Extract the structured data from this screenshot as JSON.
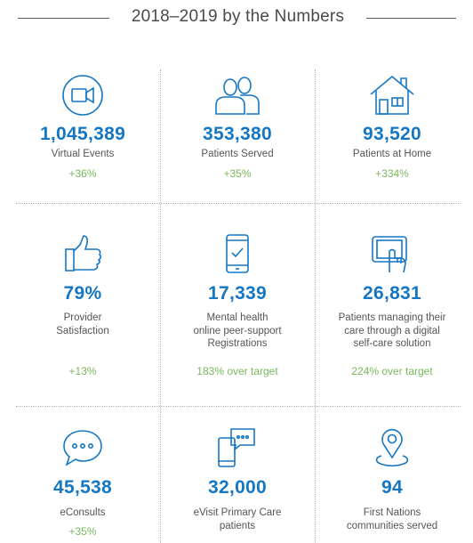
{
  "header": {
    "title": "2018–2019 by the Numbers"
  },
  "stats": [
    {
      "icon": "video-camera-icon",
      "number": "1,045,389",
      "label": "Virtual Events",
      "delta": "+36%"
    },
    {
      "icon": "people-icon",
      "number": "353,380",
      "label": "Patients Served",
      "delta": "+35%"
    },
    {
      "icon": "house-icon",
      "number": "93,520",
      "label": "Patients at Home",
      "delta": "+334%"
    },
    {
      "icon": "thumbs-up-icon",
      "number": "79%",
      "label": "Provider\nSatisfaction",
      "delta": "+13%"
    },
    {
      "icon": "smartphone-check-icon",
      "number": "17,339",
      "label": "Mental health\nonline peer-support\nRegistrations",
      "delta": "183% over target"
    },
    {
      "icon": "tablet-touch-icon",
      "number": "26,831",
      "label": "Patients managing their\ncare through a digital\nself-care solution",
      "delta": "224% over target"
    },
    {
      "icon": "chat-bubble-icon",
      "number": "45,538",
      "label": "eConsults",
      "delta": "+35%"
    },
    {
      "icon": "phone-chat-icon",
      "number": "32,000",
      "label": "eVisit Primary Care\npatients",
      "delta": ""
    },
    {
      "icon": "map-pin-icon",
      "number": "94",
      "label": "First Nations\ncommunities served",
      "delta": ""
    }
  ],
  "colors": {
    "accent": "#1577c2",
    "positive": "#77b85c",
    "text": "#555555",
    "rule": "#5b5b5b"
  }
}
